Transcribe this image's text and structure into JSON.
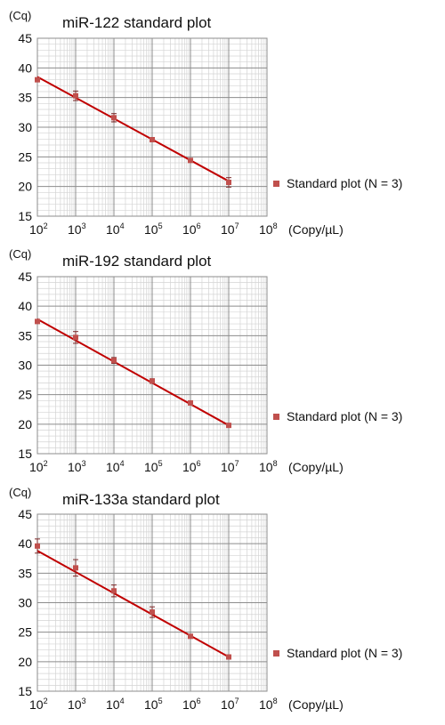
{
  "chart_data": [
    {
      "type": "scatter",
      "title": "miR-122 standard plot",
      "ylabel": "(Cq)",
      "xlabel": "(Copy/µL)",
      "xscale": "log",
      "xlim": [
        100,
        100000000
      ],
      "ylim": [
        15,
        45
      ],
      "yticks": [
        "15",
        "20",
        "25",
        "30",
        "35",
        "40",
        "45"
      ],
      "xticks": [
        {
          "base": "10",
          "exp": "2"
        },
        {
          "base": "10",
          "exp": "3"
        },
        {
          "base": "10",
          "exp": "4"
        },
        {
          "base": "10",
          "exp": "5"
        },
        {
          "base": "10",
          "exp": "6"
        },
        {
          "base": "10",
          "exp": "7"
        },
        {
          "base": "10",
          "exp": "8"
        }
      ],
      "grid": true,
      "legend_position": "right",
      "series": [
        {
          "name": "Standard plot  (N = 3)",
          "color": "#c0504d",
          "x": [
            100,
            1000,
            10000,
            100000,
            1000000,
            10000000
          ],
          "y": [
            38.0,
            35.3,
            31.6,
            27.9,
            24.4,
            20.7
          ],
          "err": [
            0.2,
            0.8,
            0.7,
            0.2,
            0.2,
            0.8
          ],
          "fit": {
            "x": [
              100,
              10000000
            ],
            "y": [
              38.5,
              20.9
            ],
            "color": "#c00000"
          }
        }
      ]
    },
    {
      "type": "scatter",
      "title": "miR-192 standard plot",
      "ylabel": "(Cq)",
      "xlabel": "(Copy/µL)",
      "xscale": "log",
      "xlim": [
        100,
        100000000
      ],
      "ylim": [
        15,
        45
      ],
      "yticks": [
        "15",
        "20",
        "25",
        "30",
        "35",
        "40",
        "45"
      ],
      "xticks": [
        {
          "base": "10",
          "exp": "2"
        },
        {
          "base": "10",
          "exp": "3"
        },
        {
          "base": "10",
          "exp": "4"
        },
        {
          "base": "10",
          "exp": "5"
        },
        {
          "base": "10",
          "exp": "6"
        },
        {
          "base": "10",
          "exp": "7"
        },
        {
          "base": "10",
          "exp": "8"
        }
      ],
      "grid": true,
      "legend_position": "right",
      "series": [
        {
          "name": "Standard plot  (N = 3)",
          "color": "#c0504d",
          "x": [
            100,
            1000,
            10000,
            100000,
            1000000,
            10000000
          ],
          "y": [
            37.4,
            34.7,
            30.8,
            27.3,
            23.6,
            19.8
          ],
          "err": [
            0.2,
            1.0,
            0.5,
            0.4,
            0.2,
            0.2
          ],
          "fit": {
            "x": [
              100,
              10000000
            ],
            "y": [
              37.8,
              19.8
            ],
            "color": "#c00000"
          }
        }
      ]
    },
    {
      "type": "scatter",
      "title": "miR-133a standard plot",
      "ylabel": "(Cq)",
      "xlabel": "(Copy/µL)",
      "xscale": "log",
      "xlim": [
        100,
        100000000
      ],
      "ylim": [
        15,
        45
      ],
      "yticks": [
        "15",
        "20",
        "25",
        "30",
        "35",
        "40",
        "45"
      ],
      "xticks": [
        {
          "base": "10",
          "exp": "2"
        },
        {
          "base": "10",
          "exp": "3"
        },
        {
          "base": "10",
          "exp": "4"
        },
        {
          "base": "10",
          "exp": "5"
        },
        {
          "base": "10",
          "exp": "6"
        },
        {
          "base": "10",
          "exp": "7"
        },
        {
          "base": "10",
          "exp": "8"
        }
      ],
      "grid": true,
      "legend_position": "right",
      "series": [
        {
          "name": "Standard plot  (N = 3)",
          "color": "#c0504d",
          "x": [
            100,
            1000,
            10000,
            100000,
            1000000,
            10000000
          ],
          "y": [
            39.6,
            35.9,
            32.0,
            28.4,
            24.3,
            20.8
          ],
          "err": [
            1.2,
            1.4,
            1.0,
            0.9,
            0.3,
            0.2
          ],
          "fit": {
            "x": [
              100,
              10000000
            ],
            "y": [
              38.8,
              20.8
            ],
            "color": "#c00000"
          }
        }
      ]
    }
  ]
}
